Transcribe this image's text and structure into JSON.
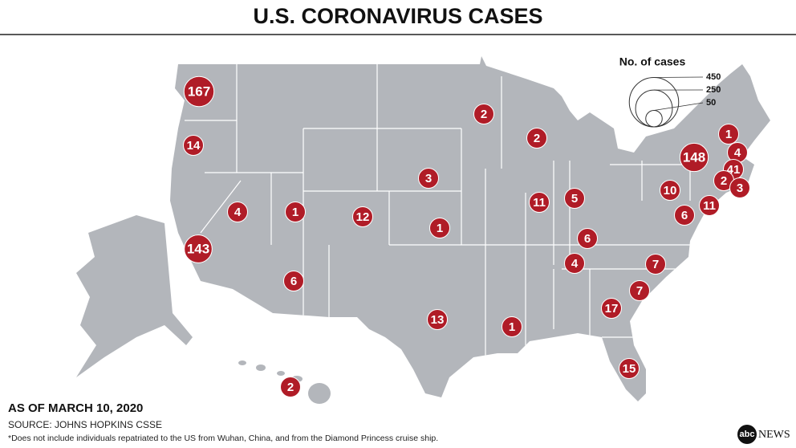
{
  "header": {
    "title": "U.S. CORONAVIRUS CASES"
  },
  "legend": {
    "title": "No. of cases",
    "sizes": [
      450,
      250,
      50
    ]
  },
  "bubbles": {
    "values": [
      167,
      14,
      143,
      4,
      1,
      6,
      12,
      3,
      1,
      13,
      2,
      2,
      11,
      5,
      6,
      4,
      1,
      17,
      7,
      7,
      15,
      10,
      6,
      11,
      148,
      1,
      4,
      41,
      2,
      3,
      2
    ]
  },
  "footer": {
    "date": "AS OF MARCH 10, 2020",
    "source": "SOURCE: JOHNS HOPKINS CSSE",
    "note": "*Does not include individuals repatriated to the US from Wuhan, China, and from the Diamond Princess cruise ship."
  },
  "logo": {
    "brand": "abc",
    "name": "NEWS"
  }
}
